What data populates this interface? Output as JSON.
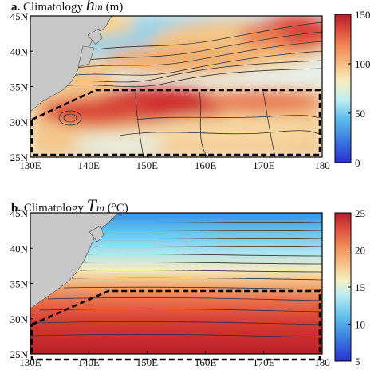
{
  "chart_data": [
    {
      "type": "heatmap",
      "panel_label": "a.",
      "title_text": "Climatology",
      "title_symbol": "h",
      "title_subscript": "m",
      "title_unit": "(m)",
      "xlabel": "",
      "ylabel": "",
      "x_ticks": [
        "130E",
        "140E",
        "150E",
        "160E",
        "170E",
        "180"
      ],
      "y_ticks": [
        "45N",
        "40N",
        "35N",
        "30N",
        "25N"
      ],
      "x_range": [
        130,
        180
      ],
      "y_range": [
        25,
        45
      ],
      "colorbar": {
        "ticks": [
          "0",
          "50",
          "100",
          "150"
        ],
        "range": [
          0,
          150
        ]
      },
      "box": {
        "lon": [
          130,
          180
        ],
        "lat": [
          25,
          35
        ]
      },
      "field_highlights": [
        {
          "region": "Kuroshio Extension 142E-154E, 30N-34N",
          "value": 150
        },
        {
          "region": "NE corner 168E-180E, 40N-45N",
          "value": 140
        },
        {
          "region": "south of 30N",
          "value": 80
        }
      ]
    },
    {
      "type": "heatmap",
      "panel_label": "b.",
      "title_text": "Climatology",
      "title_symbol": "T",
      "title_subscript": "m",
      "title_unit": "(°C)",
      "xlabel": "",
      "ylabel": "",
      "x_ticks": [
        "130E",
        "140E",
        "150E",
        "160E",
        "170E",
        "180"
      ],
      "y_ticks": [
        "45N",
        "40N",
        "35N",
        "30N",
        "25N"
      ],
      "x_range": [
        130,
        180
      ],
      "y_range": [
        25,
        45
      ],
      "colorbar": {
        "ticks": [
          "5",
          "10",
          "15",
          "20",
          "25"
        ],
        "range": [
          5,
          25
        ]
      },
      "box": {
        "lon": [
          130,
          180
        ],
        "lat": [
          25,
          35
        ]
      },
      "field_highlights": [
        {
          "region": "north at 45N",
          "value": 5
        },
        {
          "region": "near 38N",
          "value": 15
        },
        {
          "region": "south of 30N",
          "value": 25
        }
      ]
    }
  ],
  "colors": {
    "land": "#c8c8c8",
    "box": "#000000",
    "contour": "#333333"
  }
}
